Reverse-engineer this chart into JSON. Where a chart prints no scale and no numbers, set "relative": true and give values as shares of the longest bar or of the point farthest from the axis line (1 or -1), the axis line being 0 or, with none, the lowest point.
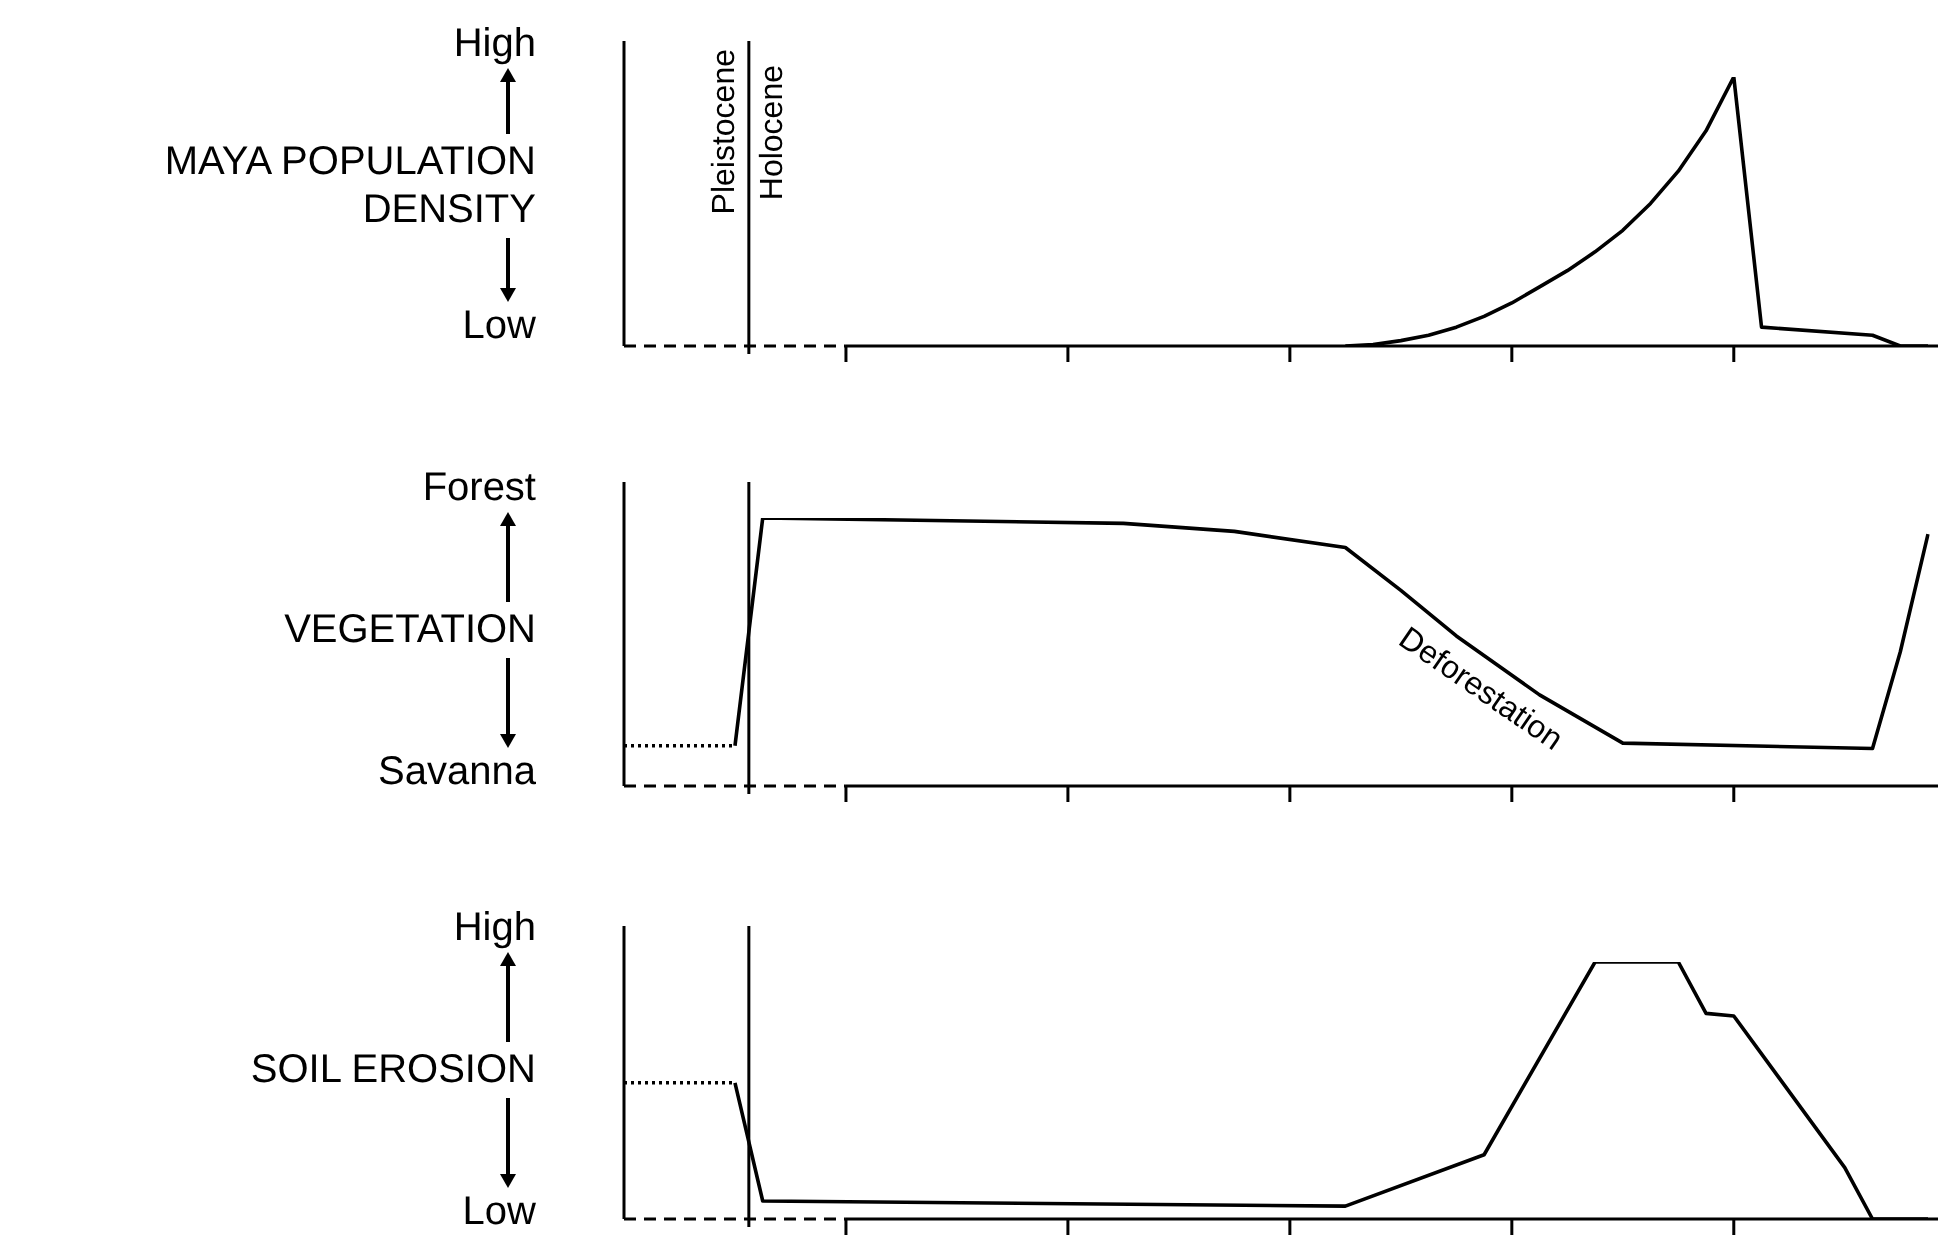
{
  "chart_data": [
    {
      "type": "line",
      "relative": true,
      "ylabel": "MAYA POPULATION DENSITY",
      "categories": [
        null,
        null,
        null,
        null,
        null,
        null,
        null,
        null,
        null,
        null,
        null,
        null,
        null,
        null,
        null,
        null,
        null,
        null,
        null,
        null,
        null,
        null,
        null,
        null,
        null,
        null,
        null,
        null,
        null,
        null,
        null,
        null,
        null,
        null,
        null,
        null,
        null,
        null,
        null,
        null,
        null,
        null,
        null,
        null,
        null,
        null,
        null,
        null
      ],
      "annotations": [
        "High",
        "Low",
        "Pleistocene",
        "Holocene"
      ],
      "series": [
        {
          "color": "#000000",
          "line_style": "solid",
          "values": [
            null,
            null,
            null,
            null,
            null,
            null,
            null,
            null,
            null,
            null,
            null,
            null,
            null,
            null,
            null,
            null,
            null,
            null,
            null,
            null,
            null,
            null,
            null,
            null,
            null,
            null,
            0,
            0.005,
            0.02,
            0.04,
            0.07,
            0.11,
            0.16,
            0.22,
            0.28,
            0.35,
            0.43,
            0.53,
            0.65,
            0.8,
            1,
            0.07,
            null,
            null,
            null,
            0.04,
            0,
            0
          ]
        }
      ]
    },
    {
      "type": "line",
      "relative": true,
      "ylabel": "VEGETATION",
      "categories": [
        null,
        null,
        null,
        null,
        null,
        null,
        null,
        null,
        null,
        null,
        null,
        null,
        null,
        null,
        null,
        null,
        null,
        null,
        null,
        null,
        null,
        null,
        null,
        null,
        null,
        null,
        null,
        null,
        null,
        null,
        null,
        null,
        null,
        null,
        null,
        null,
        null,
        null,
        null,
        null,
        null,
        null,
        null,
        null,
        null,
        null,
        null,
        null
      ],
      "annotations": [
        "Forest",
        "Savanna",
        "Deforestation"
      ],
      "series": [
        {
          "color": "#000000",
          "line_style": "dotted",
          "values": [
            0.15,
            null,
            null,
            null,
            0.15,
            null,
            null,
            null,
            null,
            null,
            null,
            null,
            null,
            null,
            null,
            null,
            null,
            null,
            null,
            null,
            null,
            null,
            null,
            null,
            null,
            null,
            null,
            null,
            null,
            null,
            null,
            null,
            null,
            null,
            null,
            null,
            null,
            null,
            null,
            null,
            null,
            null,
            null,
            null,
            null,
            null,
            null,
            null
          ]
        },
        {
          "color": "#000000",
          "line_style": "solid",
          "values": [
            null,
            null,
            null,
            null,
            0.15,
            1,
            null,
            null,
            null,
            null,
            null,
            null,
            null,
            null,
            null,
            null,
            null,
            null,
            0.98,
            null,
            null,
            null,
            0.95,
            null,
            null,
            null,
            0.89,
            null,
            0.73,
            null,
            0.56,
            null,
            null,
            0.34,
            null,
            null,
            0.16,
            null,
            null,
            null,
            null,
            null,
            null,
            null,
            null,
            0.14,
            0.5,
            0.94
          ]
        }
      ]
    },
    {
      "type": "line",
      "relative": true,
      "ylabel": "SOIL EROSION",
      "categories": [
        null,
        null,
        null,
        null,
        null,
        null,
        null,
        null,
        null,
        null,
        null,
        null,
        null,
        null,
        null,
        null,
        null,
        null,
        null,
        null,
        null,
        null,
        null,
        null,
        null,
        null,
        null,
        null,
        null,
        null,
        null,
        null,
        null,
        null,
        null,
        null,
        null,
        null,
        null,
        null,
        null,
        null,
        null,
        null,
        null,
        null,
        null,
        null
      ],
      "annotations": [
        "High",
        "Low"
      ],
      "series": [
        {
          "color": "#000000",
          "line_style": "dotted",
          "values": [
            0.53,
            null,
            null,
            null,
            0.53,
            null,
            null,
            null,
            null,
            null,
            null,
            null,
            null,
            null,
            null,
            null,
            null,
            null,
            null,
            null,
            null,
            null,
            null,
            null,
            null,
            null,
            null,
            null,
            null,
            null,
            null,
            null,
            null,
            null,
            null,
            null,
            null,
            null,
            null,
            null,
            null,
            null,
            null,
            null,
            null,
            null,
            null,
            null
          ]
        },
        {
          "color": "#000000",
          "line_style": "solid",
          "values": [
            null,
            null,
            null,
            null,
            0.53,
            0.07,
            null,
            null,
            null,
            null,
            null,
            null,
            null,
            null,
            null,
            null,
            null,
            null,
            null,
            null,
            null,
            null,
            null,
            null,
            null,
            null,
            0.05,
            null,
            null,
            null,
            null,
            0.25,
            null,
            null,
            null,
            1,
            null,
            null,
            1,
            0.8,
            0.79,
            null,
            null,
            null,
            0.2,
            0,
            null,
            0
          ]
        }
      ]
    }
  ]
}
